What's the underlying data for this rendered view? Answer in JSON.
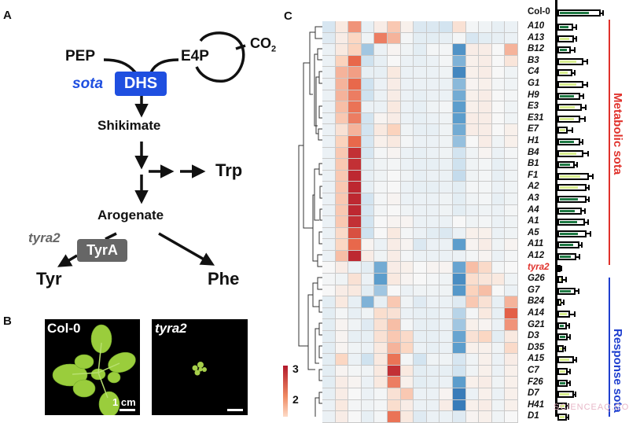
{
  "panels": {
    "a": {
      "letter": "A",
      "molecules": {
        "pep": "PEP",
        "e4p": "E4P",
        "co2": "CO",
        "co2_sub": "2",
        "shikimate": "Shikimate",
        "trp": "Trp",
        "arogenate": "Arogenate",
        "tyr": "Tyr",
        "phe": "Phe"
      },
      "enzymes": {
        "dhs": {
          "label": "DHS",
          "color": "#1f4fe0"
        },
        "tyra": {
          "label": "TyrA",
          "color": "#666666"
        }
      },
      "mutants": {
        "sota": {
          "label": "sota",
          "color": "#1f4fe0"
        },
        "tyra2": {
          "label": "tyra2",
          "color": "#666666"
        }
      }
    },
    "b": {
      "letter": "B",
      "photos": [
        {
          "label": "Col-0",
          "scale_label": "1 cm"
        },
        {
          "label": "tyra2",
          "scale_label": ""
        }
      ]
    },
    "c": {
      "letter": "C",
      "colorbar": {
        "ticks": [
          "3",
          "2"
        ],
        "high_color": "#b2182b",
        "mid_color": "#f7f7f7",
        "low_color": "#2166ac"
      },
      "groups": [
        {
          "label": "Metabolic sota",
          "color": "#e0312b"
        },
        {
          "label": "Response sota",
          "color": "#1f3fcf"
        }
      ],
      "control_label": "Col-0",
      "watermark": "SCIENCEAQ.COM"
    }
  },
  "chart_data": {
    "type": "heatmap",
    "title": "",
    "xlabel": "",
    "ylabel": "",
    "value_range": [
      -3,
      3
    ],
    "columns": 15,
    "rows": [
      "A10",
      "A13",
      "B12",
      "B3",
      "C4",
      "G1",
      "H9",
      "E3",
      "E31",
      "E7",
      "H1",
      "B4",
      "B1",
      "F1",
      "A2",
      "A3",
      "A4",
      "A1",
      "A5",
      "A11",
      "A12",
      "tyra2",
      "G26",
      "G7",
      "B24",
      "A14",
      "G21",
      "D3",
      "D35",
      "A15",
      "C7",
      "F26",
      "D7",
      "H41",
      "D1"
    ],
    "values": [
      [
        -0.8,
        0.4,
        1.6,
        -0.4,
        0.3,
        1.1,
        0.2,
        -0.7,
        -0.7,
        -0.9,
        0.6,
        -0.1,
        -0.2,
        -0.4,
        -0.3
      ],
      [
        -0.6,
        0.3,
        0.9,
        -0.2,
        1.8,
        1.3,
        -0.1,
        -0.5,
        -0.5,
        -0.4,
        -0.1,
        -0.8,
        -0.5,
        -0.4,
        -0.3
      ],
      [
        -0.3,
        0.4,
        1.0,
        -1.4,
        -0.3,
        0.1,
        -0.2,
        -0.5,
        -0.1,
        -0.1,
        -2.2,
        0.3,
        0.3,
        0.0,
        1.3
      ],
      [
        -0.3,
        1.0,
        2.0,
        -1.0,
        -0.4,
        0.0,
        -0.3,
        -0.4,
        -0.3,
        -0.1,
        -1.7,
        0.2,
        0.3,
        0.0,
        0.5
      ],
      [
        -0.3,
        1.3,
        1.5,
        -0.4,
        -0.4,
        0.4,
        -0.3,
        -0.3,
        -0.3,
        -0.2,
        -2.4,
        0.2,
        0.3,
        0.0,
        -0.2
      ],
      [
        -0.3,
        1.3,
        2.0,
        -1.0,
        -0.3,
        0.3,
        -0.3,
        -0.3,
        -0.3,
        -0.3,
        -1.6,
        0.1,
        0.2,
        -0.1,
        -0.2
      ],
      [
        -0.3,
        1.3,
        1.8,
        -1.0,
        -0.3,
        0.3,
        -0.3,
        -0.4,
        -0.3,
        -0.3,
        -1.8,
        0.2,
        0.3,
        0.0,
        -0.1
      ],
      [
        -0.3,
        1.2,
        1.9,
        -0.3,
        -0.3,
        0.4,
        -0.3,
        -0.4,
        -0.2,
        -0.1,
        -2.0,
        0.2,
        0.3,
        0.0,
        -0.2
      ],
      [
        -0.3,
        1.1,
        1.8,
        -0.9,
        0.1,
        0.3,
        -0.3,
        -0.4,
        -0.3,
        -0.2,
        -2.0,
        0.3,
        0.3,
        0.0,
        -0.2
      ],
      [
        -0.3,
        0.6,
        1.3,
        -0.9,
        0.4,
        1.0,
        -0.2,
        -0.4,
        -0.4,
        -0.2,
        -1.8,
        0.3,
        0.3,
        0.0,
        0.2
      ],
      [
        -0.3,
        1.0,
        2.0,
        -0.8,
        0.2,
        0.4,
        -0.1,
        -0.3,
        -0.3,
        -0.2,
        -1.5,
        0.0,
        0.3,
        -0.2,
        0.2
      ],
      [
        -0.3,
        1.1,
        2.7,
        -0.8,
        -0.1,
        0.1,
        -0.3,
        -0.4,
        -0.3,
        -0.2,
        -0.9,
        -0.2,
        0.1,
        -0.3,
        -0.1
      ],
      [
        -0.3,
        1.1,
        2.7,
        -0.5,
        -0.2,
        -0.1,
        -0.3,
        -0.4,
        -0.4,
        -0.3,
        -1.0,
        -0.2,
        -0.1,
        -0.4,
        -0.2
      ],
      [
        -0.3,
        1.1,
        2.8,
        -0.4,
        -0.2,
        0.0,
        -0.2,
        -0.4,
        -0.3,
        -0.3,
        -1.1,
        -0.2,
        -0.1,
        -0.4,
        -0.2
      ],
      [
        -0.3,
        1.1,
        2.8,
        -0.4,
        -0.1,
        0.0,
        -0.3,
        -0.4,
        -0.4,
        -0.3,
        -0.5,
        -0.1,
        -0.1,
        -0.3,
        -0.2
      ],
      [
        -0.3,
        1.1,
        2.8,
        -0.9,
        -0.1,
        0.1,
        -0.3,
        -0.3,
        -0.3,
        -0.2,
        -0.5,
        -0.2,
        -0.1,
        -0.4,
        -0.2
      ],
      [
        -0.3,
        1.1,
        2.8,
        -0.8,
        -0.1,
        0.0,
        -0.2,
        -0.3,
        -0.3,
        -0.2,
        -0.5,
        -0.3,
        -0.2,
        -0.3,
        -0.1
      ],
      [
        -0.3,
        1.1,
        2.7,
        -0.9,
        0.0,
        0.1,
        0.1,
        -0.3,
        -0.3,
        -0.3,
        0.0,
        -0.2,
        -0.1,
        -0.3,
        -0.2
      ],
      [
        -0.3,
        0.8,
        2.3,
        -1.0,
        0.0,
        0.4,
        -0.1,
        -0.3,
        -0.5,
        -0.7,
        -0.3,
        0.2,
        0.2,
        -0.3,
        -0.2
      ],
      [
        -0.3,
        0.9,
        2.0,
        0.1,
        -0.3,
        0.3,
        0.1,
        -0.7,
        -0.3,
        -0.3,
        -2.0,
        0.1,
        0.3,
        -0.2,
        0.1
      ],
      [
        -0.3,
        1.2,
        2.8,
        0.3,
        -0.2,
        0.3,
        -0.1,
        -0.3,
        -0.3,
        -0.3,
        -0.3,
        -0.1,
        0.1,
        -0.3,
        -0.1
      ],
      [
        0.0,
        0.3,
        -0.3,
        -0.5,
        -1.8,
        0.3,
        0.2,
        0.0,
        0.1,
        0.1,
        -1.9,
        1.2,
        0.8,
        -0.1,
        0.0
      ],
      [
        -0.1,
        -0.2,
        0.6,
        -0.3,
        -2.0,
        0.4,
        0.1,
        0.0,
        -0.1,
        -0.2,
        -2.3,
        0.7,
        0.5,
        0.4,
        -0.2
      ],
      [
        0.0,
        0.3,
        0.4,
        -0.5,
        -1.4,
        0.0,
        -0.3,
        -0.2,
        -0.2,
        -0.2,
        -2.1,
        1.0,
        1.2,
        0.0,
        -0.3
      ],
      [
        -0.5,
        0.4,
        -0.4,
        -1.7,
        -0.4,
        1.1,
        -0.2,
        -0.6,
        -0.3,
        -0.3,
        -0.6,
        1.1,
        0.6,
        -0.4,
        1.3
      ],
      [
        -0.5,
        -0.1,
        -0.4,
        -0.2,
        0.7,
        0.6,
        -0.3,
        -0.4,
        -0.4,
        -0.3,
        -1.2,
        -0.1,
        0.4,
        -0.4,
        2.1
      ],
      [
        -0.5,
        0.1,
        -0.2,
        -0.6,
        0.6,
        1.2,
        -0.1,
        -0.4,
        -0.4,
        -0.3,
        -1.4,
        0.2,
        0.1,
        -0.3,
        1.6
      ],
      [
        -0.5,
        0.1,
        -0.4,
        -0.4,
        0.6,
        1.1,
        0.8,
        -0.4,
        -0.4,
        -0.3,
        -1.9,
        0.6,
        0.9,
        -0.5,
        0.4
      ],
      [
        -0.5,
        0.1,
        -0.2,
        -0.3,
        0.4,
        1.3,
        0.9,
        -0.3,
        -0.4,
        -0.3,
        -2.0,
        0.2,
        0.2,
        -0.2,
        0.8
      ],
      [
        -0.5,
        0.9,
        -0.3,
        -1.0,
        0.4,
        1.9,
        -0.1,
        -0.9,
        -0.2,
        -0.2,
        -0.8,
        -0.2,
        0.2,
        -0.3,
        0.3
      ],
      [
        -0.5,
        0.1,
        -0.1,
        -0.2,
        0.4,
        2.7,
        0.4,
        -0.5,
        -0.4,
        -0.4,
        -0.9,
        -0.2,
        0.2,
        -0.3,
        0.2
      ],
      [
        -0.5,
        0.3,
        0.1,
        -0.3,
        0.4,
        1.8,
        0.2,
        -0.5,
        -0.4,
        -0.3,
        -2.0,
        0.2,
        0.3,
        -0.2,
        0.2
      ],
      [
        -0.4,
        0.3,
        0.0,
        -0.3,
        -0.1,
        0.6,
        1.1,
        -0.3,
        -0.3,
        0.1,
        -2.6,
        -0.3,
        0.2,
        -0.3,
        0.2
      ],
      [
        -0.3,
        0.4,
        -0.1,
        -0.2,
        -0.1,
        0.7,
        0.3,
        -0.3,
        -0.3,
        0.3,
        -2.6,
        0.2,
        0.3,
        -0.2,
        0.2
      ],
      [
        -0.3,
        0.3,
        0.0,
        -0.4,
        -0.1,
        1.9,
        0.4,
        -0.6,
        -0.3,
        -0.3,
        -0.6,
        0.1,
        0.2,
        -0.2,
        0.0
      ]
    ],
    "bar_panel": {
      "type": "bar",
      "orientation": "horizontal",
      "categories": [
        "Col-0",
        "A10",
        "A13",
        "B12",
        "B3",
        "C4",
        "G1",
        "H9",
        "E3",
        "E31",
        "E7",
        "H1",
        "B4",
        "B1",
        "F1",
        "A2",
        "A3",
        "A4",
        "A1",
        "A5",
        "A11",
        "A12",
        "tyra2",
        "G26",
        "G7",
        "B24",
        "A14",
        "G21",
        "D3",
        "D35",
        "A15",
        "C7",
        "F26",
        "D7",
        "H41",
        "D1"
      ],
      "values": [
        62,
        22,
        24,
        19,
        37,
        21,
        37,
        33,
        35,
        33,
        15,
        33,
        37,
        25,
        45,
        41,
        41,
        35,
        39,
        41,
        31,
        27,
        2,
        8,
        26,
        6,
        18,
        13,
        15,
        9,
        23,
        15,
        15,
        23,
        14,
        14
      ],
      "errors": [
        2,
        4,
        2,
        5,
        5,
        3,
        5,
        3,
        4,
        5,
        5,
        2,
        6,
        2,
        4,
        3,
        3,
        3,
        4,
        5,
        3,
        3,
        1,
        3,
        3,
        2,
        5,
        3,
        2,
        1,
        3,
        2,
        2,
        2,
        1,
        1
      ],
      "fill_colors": [
        "dark",
        "dark",
        "light",
        "dark",
        "light",
        "light",
        "light",
        "dark",
        "light",
        "light",
        "light",
        "dark",
        "light",
        "dark",
        "light",
        "light",
        "dark",
        "dark",
        "dark",
        "dark",
        "dark",
        "dark",
        "dark",
        "light",
        "dark",
        "light",
        "light",
        "dark",
        "dark",
        "light",
        "light",
        "light",
        "dark",
        "light",
        "light",
        "light"
      ],
      "dark_color": "#1f7a44",
      "light_color": "#d8ee90",
      "xlim": [
        0,
        65
      ]
    }
  }
}
